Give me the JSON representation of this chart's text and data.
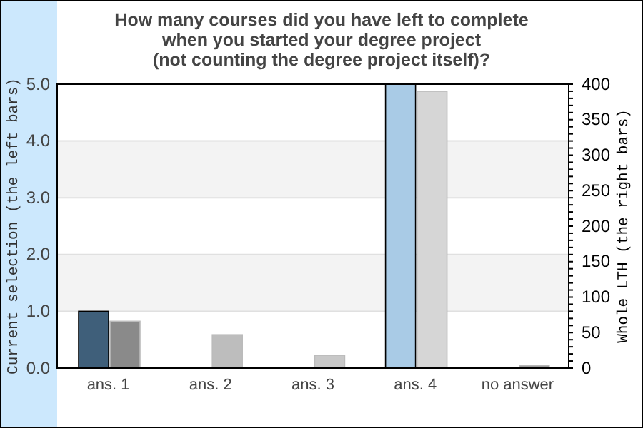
{
  "chart_data": {
    "type": "bar",
    "title": "How many courses did you have left to complete\nwhen you started your degree project\n(not counting the degree project itself)?",
    "ylabel": "Current selection (the left bars)",
    "y2label": "Whole LTH (the right bars)",
    "categories": [
      "ans. 1",
      "ans. 2",
      "ans. 3",
      "ans. 4",
      "no answer"
    ],
    "series": [
      {
        "colors": [
          "#3f5f7a",
          "#3f5f7a",
          "#3f5f7a",
          "#a9cbe6",
          "#3f5f7a"
        ],
        "values": [
          1,
          0,
          0,
          5,
          0
        ]
      },
      {
        "axis": "y2",
        "colors": [
          "#8a8a8a",
          "#bdbdbd",
          "#c8c8c8",
          "#d6d6d6",
          "#a0a0a0"
        ],
        "values": [
          66,
          47,
          18,
          390,
          4
        ]
      }
    ],
    "ylim": [
      0,
      5
    ],
    "yticks": [
      {
        "value": 0,
        "label": "0.0"
      },
      {
        "value": 1,
        "label": "1.0"
      },
      {
        "value": 2,
        "label": "2.0"
      },
      {
        "value": 3,
        "label": "3.0"
      },
      {
        "value": 4,
        "label": "4.0"
      },
      {
        "value": 5,
        "label": "5.0"
      }
    ],
    "y2lim": [
      0,
      400
    ],
    "y2ticks": [
      0,
      {
        "value": 10,
        "label": null
      },
      {
        "value": 20,
        "label": null
      },
      {
        "value": 30,
        "label": null
      },
      {
        "value": 40,
        "label": null
      },
      50,
      {
        "value": 60,
        "label": null
      },
      {
        "value": 70,
        "label": null
      },
      {
        "value": 80,
        "label": null
      },
      {
        "value": 90,
        "label": null
      },
      100,
      {
        "value": 110,
        "label": null
      },
      {
        "value": 120,
        "label": null
      },
      {
        "value": 130,
        "label": null
      },
      {
        "value": 140,
        "label": null
      },
      150,
      {
        "value": 160,
        "label": null
      },
      {
        "value": 170,
        "label": null
      },
      {
        "value": 180,
        "label": null
      },
      {
        "value": 190,
        "label": null
      },
      200,
      {
        "value": 210,
        "label": null
      },
      {
        "value": 220,
        "label": null
      },
      {
        "value": 230,
        "label": null
      },
      {
        "value": 240,
        "label": null
      },
      250,
      {
        "value": 260,
        "label": null
      },
      {
        "value": 270,
        "label": null
      },
      {
        "value": 280,
        "label": null
      },
      {
        "value": 290,
        "label": null
      },
      300,
      {
        "value": 310,
        "label": null
      },
      {
        "value": 320,
        "label": null
      },
      {
        "value": 330,
        "label": null
      },
      {
        "value": 340,
        "label": null
      },
      350,
      {
        "value": 360,
        "label": null
      },
      {
        "value": 370,
        "label": null
      },
      {
        "value": 380,
        "label": null
      },
      {
        "value": 390,
        "label": null
      },
      400
    ],
    "grid": "y"
  }
}
